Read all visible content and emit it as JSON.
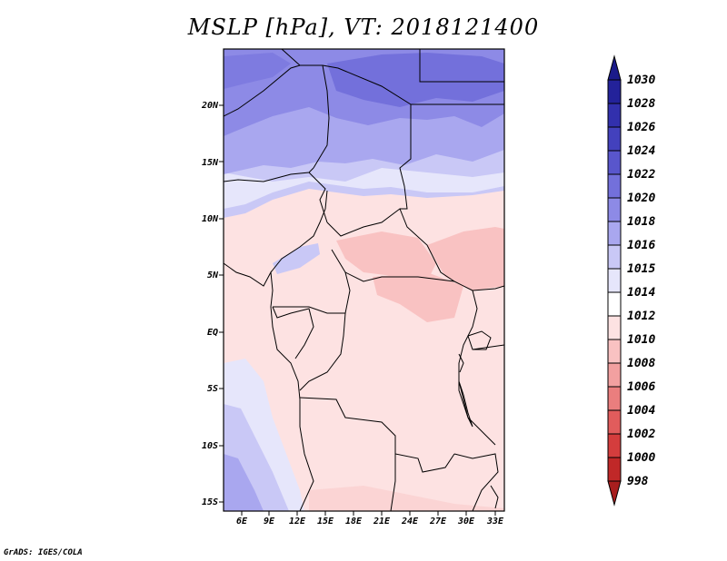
{
  "title": "MSLP [hPa], VT: 2018121400",
  "credit": "GrADS: IGES/COLA",
  "axes": {
    "lat_labels": [
      "20N",
      "15N",
      "10N",
      "5N",
      "EQ",
      "5S",
      "10S",
      "15S"
    ],
    "lat_values": [
      20,
      15,
      10,
      5,
      0,
      -5,
      -10,
      -15
    ],
    "lon_labels": [
      "6E",
      "9E",
      "12E",
      "15E",
      "18E",
      "21E",
      "24E",
      "27E",
      "30E",
      "33E"
    ],
    "lon_values": [
      6,
      9,
      12,
      15,
      18,
      21,
      24,
      27,
      30,
      33
    ],
    "lat_range": [
      -15.5,
      24.5
    ],
    "lon_range": [
      3.5,
      33.5
    ]
  },
  "colorbar": {
    "labels": [
      "1030",
      "1028",
      "1026",
      "1024",
      "1022",
      "1020",
      "1018",
      "1016",
      "1015",
      "1014",
      "1012",
      "1010",
      "1008",
      "1006",
      "1004",
      "1002",
      "1000",
      "998"
    ],
    "top_arrow_color": "#1b1b8a",
    "bottom_arrow_color": "#a81e1e",
    "colors": [
      "#23229a",
      "#3230ad",
      "#4341bd",
      "#5956cc",
      "#7370db",
      "#8d8ae6",
      "#a9a7ef",
      "#c9c8f6",
      "#e6e6fb",
      "#ffffff",
      "#fde2e2",
      "#f9c2c2",
      "#f2a0a0",
      "#ea7e7e",
      "#e15c5c",
      "#d43d3d",
      "#c02828"
    ]
  },
  "colors": {
    "high_1022": "#7370db",
    "high_1020": "#8d8ae6",
    "high_1018": "#a9a7ef",
    "high_1016": "#c9c8f6",
    "neutral_1015": "#e6e6fb",
    "low_1014": "#fde2e2",
    "low_1012": "#f9c2c2"
  }
}
